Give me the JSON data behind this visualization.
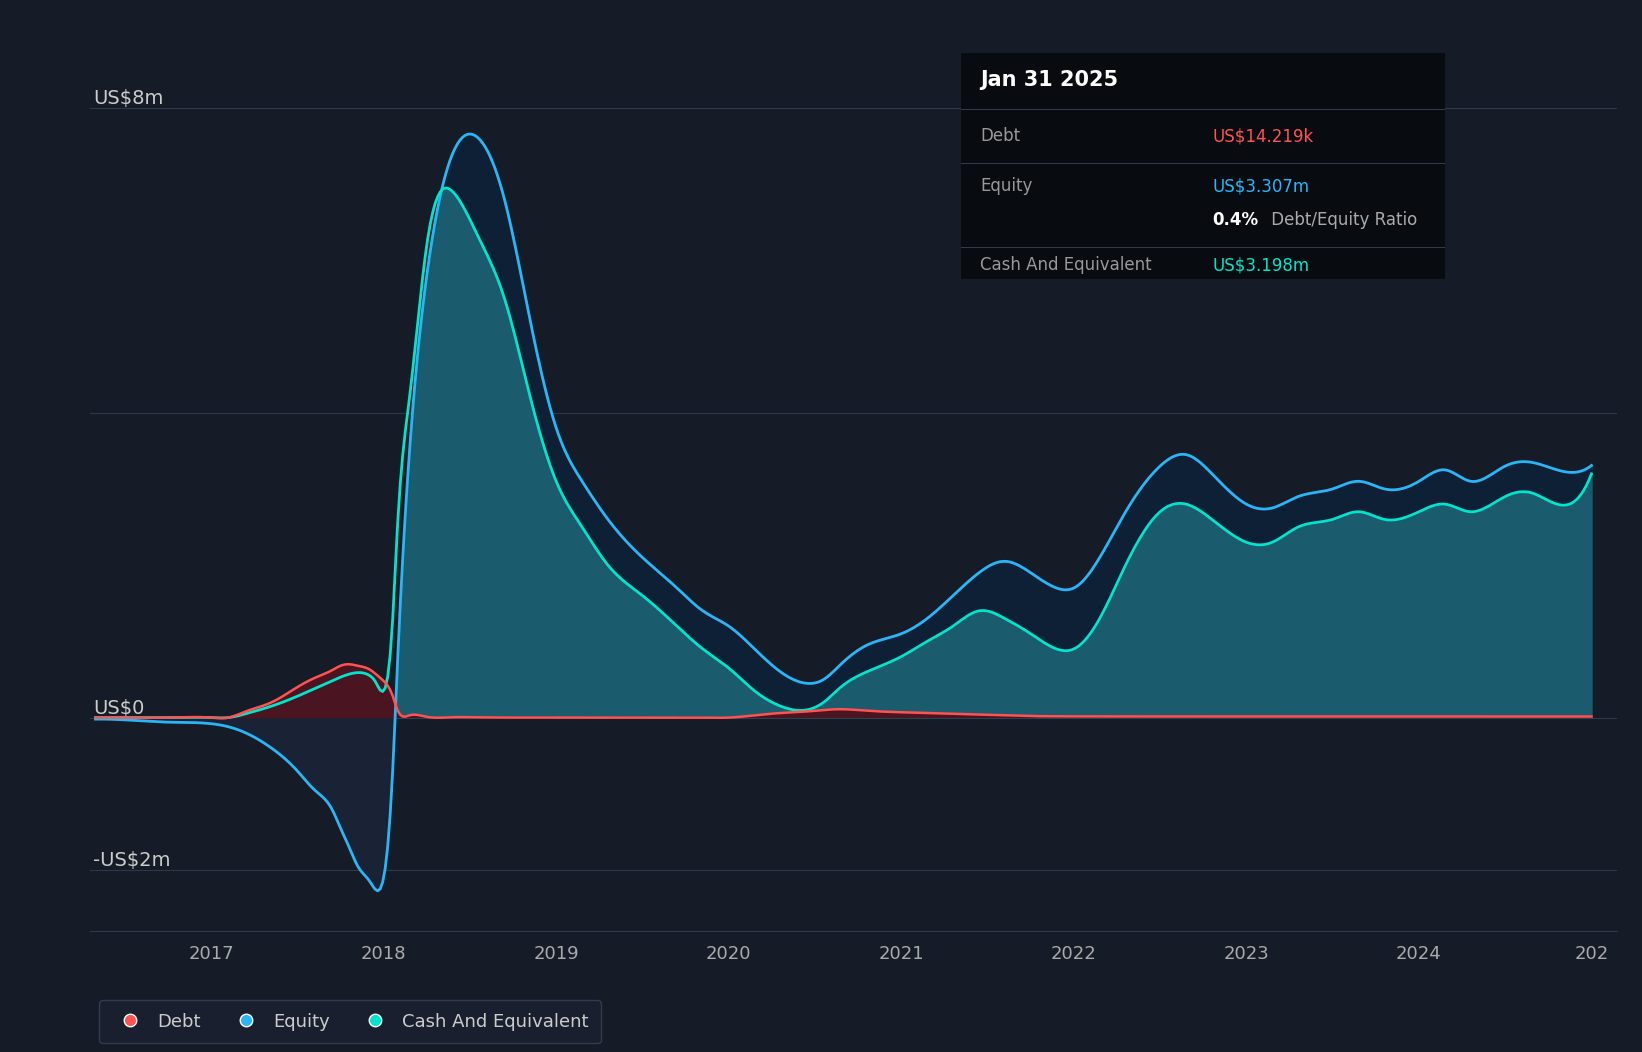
{
  "bg_color": "#161c27",
  "plot_bg_color": "#161c27",
  "title_box_bg": "#080c10",
  "title_box_text": "Jan 31 2025",
  "tooltip_debt_label": "Debt",
  "tooltip_debt_value": "US$14.219k",
  "tooltip_debt_color": "#ff5252",
  "tooltip_equity_label": "Equity",
  "tooltip_equity_value": "US$3.307m",
  "tooltip_equity_color": "#29b6f6",
  "tooltip_ratio_text": "0.4%",
  "tooltip_ratio_suffix": " Debt/Equity Ratio",
  "tooltip_ratio_color_pct": "#ffffff",
  "tooltip_ratio_color_text": "#888888",
  "tooltip_cash_label": "Cash And Equivalent",
  "tooltip_cash_value": "US$3.198m",
  "tooltip_cash_color": "#00e5cc",
  "ylabel_8m": "US$8m",
  "ylabel_0": "US$0",
  "ylabel_neg2m": "-US$2m",
  "xlabel_ticks": [
    "2017",
    "2018",
    "2019",
    "2020",
    "2021",
    "2022",
    "2023",
    "2024",
    "202"
  ],
  "legend_debt_label": "Debt",
  "legend_equity_label": "Equity",
  "legend_cash_label": "Cash And Equivalent",
  "debt_color": "#ff5252",
  "equity_color": "#29b6f6",
  "cash_color": "#00e5cc",
  "fill_teal": "#1a5c6e",
  "fill_neg_equity": "#1a2235",
  "fill_equity_above_cash": "#0d2035",
  "grid_color": "#2e3848",
  "ylim": [
    -2800000,
    9000000
  ],
  "xlim_left": 2016.3,
  "xlim_right": 2025.15,
  "time_points": [
    2016.33,
    2016.5,
    2016.75,
    2017.0,
    2017.1,
    2017.2,
    2017.35,
    2017.5,
    2017.6,
    2017.7,
    2017.75,
    2017.8,
    2017.85,
    2017.92,
    2017.95,
    2018.0,
    2018.05,
    2018.08,
    2018.15,
    2018.25,
    2018.4,
    2018.55,
    2018.7,
    2018.85,
    2019.0,
    2019.15,
    2019.3,
    2019.5,
    2019.7,
    2019.85,
    2020.0,
    2020.15,
    2020.3,
    2020.45,
    2020.55,
    2020.65,
    2020.8,
    2021.0,
    2021.15,
    2021.3,
    2021.45,
    2021.6,
    2021.75,
    2021.9,
    2022.0,
    2022.15,
    2022.3,
    2022.5,
    2022.65,
    2022.8,
    2023.0,
    2023.15,
    2023.3,
    2023.5,
    2023.65,
    2023.8,
    2024.0,
    2024.15,
    2024.3,
    2024.5,
    2024.65,
    2024.8,
    2025.0
  ],
  "equity_values": [
    -20000,
    -30000,
    -60000,
    -80000,
    -120000,
    -200000,
    -400000,
    -700000,
    -950000,
    -1200000,
    -1450000,
    -1700000,
    -1950000,
    -2150000,
    -2250000,
    -2100000,
    -800000,
    700000,
    3500000,
    5800000,
    7400000,
    7600000,
    6800000,
    5200000,
    3800000,
    3100000,
    2600000,
    2100000,
    1700000,
    1400000,
    1200000,
    900000,
    600000,
    450000,
    500000,
    700000,
    950000,
    1100000,
    1300000,
    1600000,
    1900000,
    2050000,
    1900000,
    1700000,
    1700000,
    2100000,
    2700000,
    3300000,
    3450000,
    3200000,
    2800000,
    2750000,
    2900000,
    3000000,
    3100000,
    3000000,
    3100000,
    3250000,
    3100000,
    3300000,
    3350000,
    3250000,
    3307000
  ],
  "cash_values": [
    0,
    0,
    0,
    0,
    0,
    50000,
    150000,
    280000,
    380000,
    480000,
    530000,
    570000,
    590000,
    550000,
    480000,
    350000,
    1200000,
    2500000,
    4200000,
    6200000,
    6900000,
    6300000,
    5500000,
    4200000,
    3100000,
    2500000,
    2000000,
    1600000,
    1200000,
    900000,
    650000,
    350000,
    150000,
    100000,
    200000,
    400000,
    600000,
    800000,
    1000000,
    1200000,
    1400000,
    1300000,
    1100000,
    900000,
    900000,
    1300000,
    2000000,
    2700000,
    2800000,
    2600000,
    2300000,
    2300000,
    2500000,
    2600000,
    2700000,
    2600000,
    2700000,
    2800000,
    2700000,
    2900000,
    2950000,
    2800000,
    3198000
  ],
  "debt_values": [
    0,
    0,
    0,
    0,
    0,
    80000,
    200000,
    400000,
    520000,
    620000,
    680000,
    700000,
    680000,
    630000,
    580000,
    480000,
    300000,
    100000,
    30000,
    10000,
    5000,
    2000,
    1000,
    500,
    0,
    0,
    0,
    0,
    0,
    0,
    0,
    30000,
    60000,
    80000,
    100000,
    110000,
    90000,
    70000,
    60000,
    50000,
    40000,
    30000,
    20000,
    17000,
    16000,
    15500,
    15000,
    14800,
    14600,
    14500,
    14300,
    14200,
    14100,
    14100,
    14100,
    14100,
    14100,
    14200,
    14200,
    14200,
    14200,
    14200,
    14219
  ]
}
